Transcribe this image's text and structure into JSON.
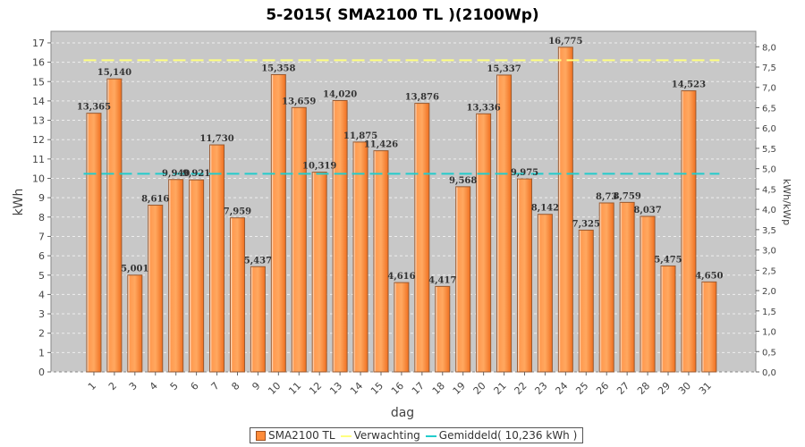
{
  "chart_data": {
    "type": "bar",
    "title": "5-2015( SMA2100 TL )(2100Wp)",
    "xlabel": "dag",
    "ylabel": "kWh",
    "ylabel_right": "kWh/kWp",
    "ylim": [
      0,
      17.6
    ],
    "yticks": [
      0,
      1,
      2,
      3,
      4,
      5,
      6,
      7,
      8,
      9,
      10,
      11,
      12,
      13,
      14,
      15,
      16,
      17
    ],
    "yticks_right": [
      "0,0",
      "0,5",
      "1,0",
      "1,5",
      "2,0",
      "2,5",
      "3,0",
      "3,5",
      "4,0",
      "4,5",
      "5,0",
      "5,5",
      "6,0",
      "6,5",
      "7,0",
      "7,5",
      "8,0"
    ],
    "right_axis_divisor_kwp": 2.1,
    "grid": true,
    "legend_placement": "bottom",
    "categories": [
      "1",
      "2",
      "3",
      "4",
      "5",
      "6",
      "7",
      "8",
      "9",
      "10",
      "11",
      "12",
      "13",
      "14",
      "15",
      "16",
      "17",
      "18",
      "19",
      "20",
      "21",
      "22",
      "23",
      "24",
      "25",
      "26",
      "27",
      "28",
      "29",
      "30",
      "31"
    ],
    "series": [
      {
        "name": "SMA2100 TL",
        "color": "#ff8c3a",
        "values": [
          13.365,
          15.14,
          5.001,
          8.616,
          9.94,
          9.921,
          11.73,
          7.959,
          5.437,
          15.358,
          13.659,
          10.319,
          14.02,
          11.875,
          11.426,
          4.616,
          13.876,
          4.417,
          9.568,
          13.336,
          15.337,
          9.975,
          8.142,
          16.775,
          7.325,
          8.73,
          8.759,
          8.037,
          5.475,
          14.523,
          4.65
        ],
        "labels": [
          "13,365",
          "15,140",
          "5,001",
          "8,616",
          "9,940",
          "9,921",
          "11,730",
          "7,959",
          "5,437",
          "15,358",
          "13,659",
          "10,319",
          "14,020",
          "11,875",
          "11,426",
          "4,616",
          "13,876",
          "4,417",
          "9,568",
          "13,336",
          "15,337",
          "9,975",
          "8,142",
          "16,775",
          "7,325",
          "8,73",
          "8,759",
          "8,037",
          "5,475",
          "14,523",
          "4,650"
        ]
      }
    ],
    "lines": [
      {
        "name": "Verwachting",
        "value": 16.1,
        "color": "#ffff80"
      },
      {
        "name": "Gemiddeld( 10,236 kWh )",
        "value": 10.236,
        "color": "#22cccc"
      }
    ]
  },
  "legend": {
    "bars": "SMA2100 TL",
    "expected": "Verwachting",
    "average": "Gemiddeld( 10,236 kWh )"
  }
}
